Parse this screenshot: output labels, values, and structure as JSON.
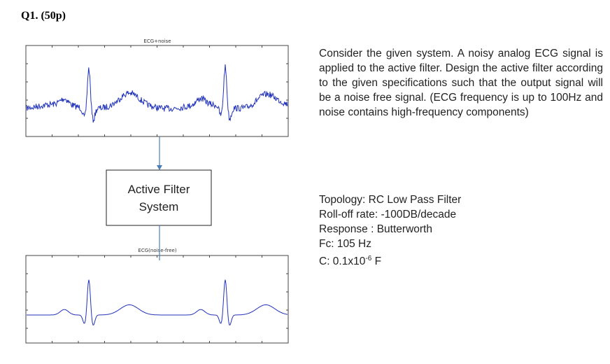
{
  "header": {
    "title": "Q1. (50p)"
  },
  "plots": [
    {
      "title": "ECG+noise"
    },
    {
      "title": "ECG(noise-free)"
    }
  ],
  "filter_box": {
    "lines": [
      "Active Filter",
      "System"
    ]
  },
  "question": {
    "text": "Consider the given system. A noisy analog ECG signal is applied to the active filter. Design the active filter according to the given specifications such that the output signal will be a noise free signal. (ECG frequency is up to 100Hz and noise contains high-frequency components)"
  },
  "specs": [
    "Topology: RC Low Pass Filter",
    "Roll-off rate: -100DB/decade",
    "Response : Butterworth",
    "Fc: 105 Hz",
    {
      "text": "C: 0.1x10",
      "sup": "-6",
      "unit": "F"
    }
  ]
}
